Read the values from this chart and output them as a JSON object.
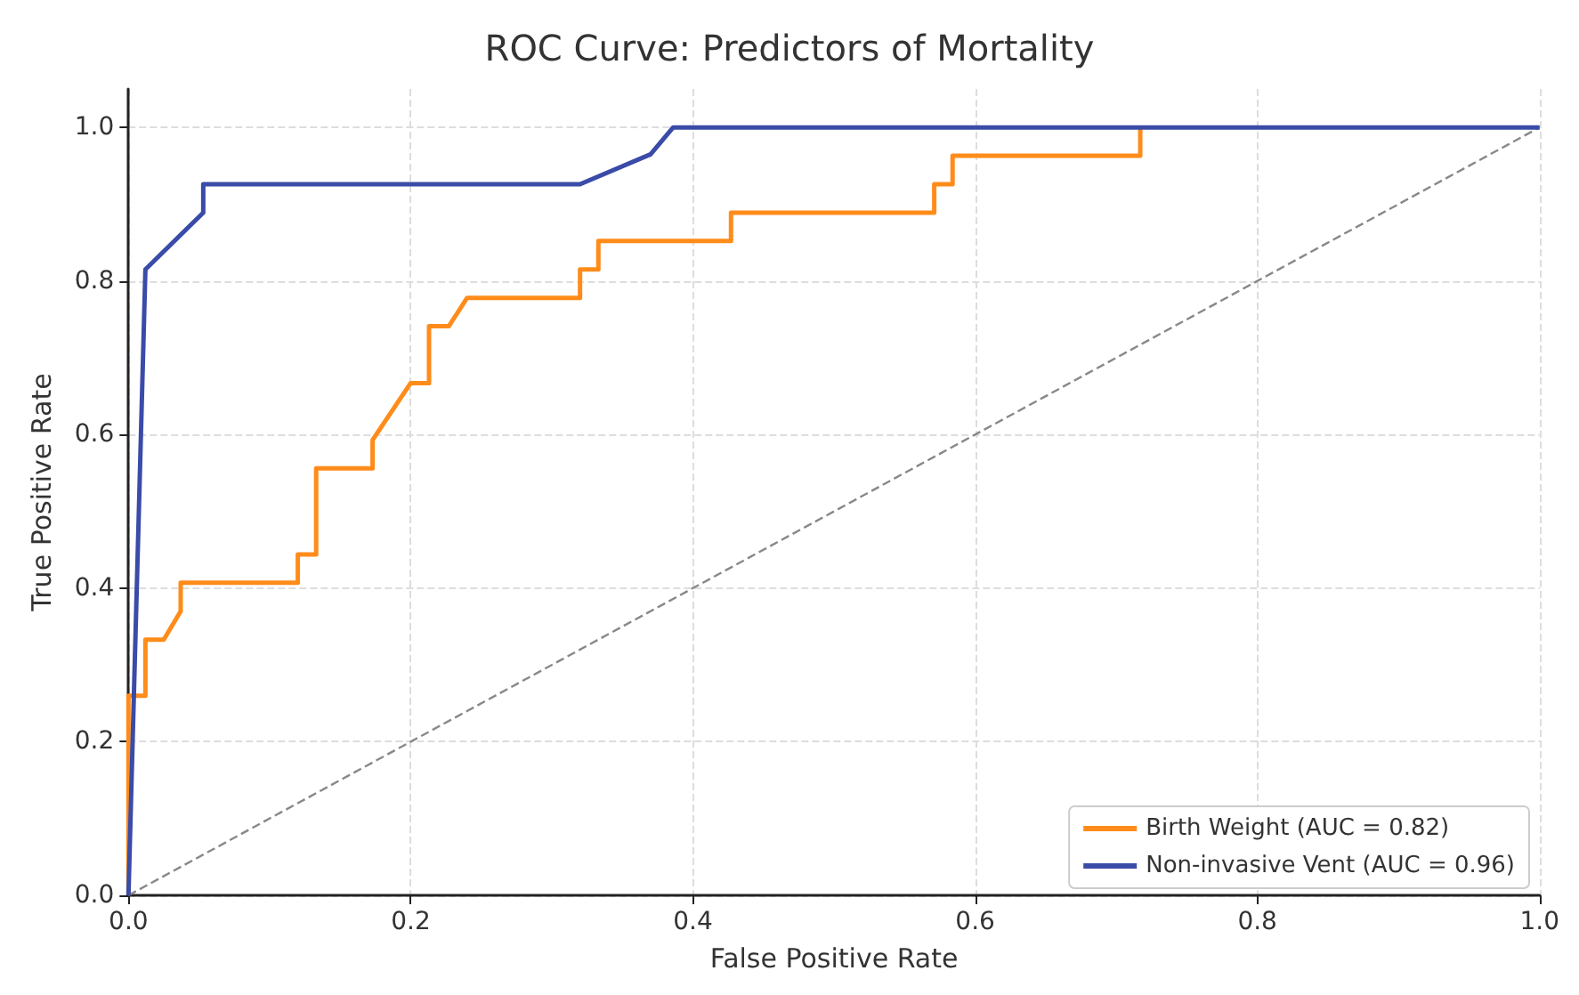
{
  "chart_data": {
    "type": "line",
    "title": "ROC Curve: Predictors of Mortality",
    "xlabel": "False Positive Rate",
    "ylabel": "True Positive Rate",
    "xlim": [
      0,
      1
    ],
    "ylim": [
      0,
      1.05
    ],
    "xticks": [
      {
        "value": 0,
        "label": "0.0"
      },
      {
        "value": 0.2,
        "label": "0.2"
      },
      {
        "value": 0.4,
        "label": "0.4"
      },
      {
        "value": 0.6,
        "label": "0.6"
      },
      {
        "value": 0.8,
        "label": "0.8"
      },
      {
        "value": 1,
        "label": "1.0"
      }
    ],
    "yticks": [
      {
        "value": 0,
        "label": "0.0"
      },
      {
        "value": 0.2,
        "label": "0.2"
      },
      {
        "value": 0.4,
        "label": "0.4"
      },
      {
        "value": 0.6,
        "label": "0.6"
      },
      {
        "value": 0.8,
        "label": "0.8"
      },
      {
        "value": 1,
        "label": "1.0"
      }
    ],
    "grid": true,
    "legend": "bottom right",
    "marker": "none",
    "series": [
      {
        "name": "Birth Weight (AUC = 0.82)",
        "color": "#ff8c1a",
        "line_style": "solid",
        "x": [
          0,
          0,
          0.012,
          0.012,
          0.025,
          0.037,
          0.037,
          0.12,
          0.12,
          0.133,
          0.133,
          0.173,
          0.173,
          0.2,
          0.213,
          0.213,
          0.227,
          0.24,
          0.32,
          0.32,
          0.333,
          0.333,
          0.427,
          0.427,
          0.571,
          0.571,
          0.584,
          0.584,
          0.717,
          0.717
        ],
        "values": [
          0,
          0.26,
          0.26,
          0.333,
          0.333,
          0.37,
          0.407,
          0.407,
          0.444,
          0.444,
          0.556,
          0.556,
          0.593,
          0.667,
          0.667,
          0.741,
          0.741,
          0.778,
          0.778,
          0.815,
          0.815,
          0.852,
          0.852,
          0.889,
          0.889,
          0.926,
          0.926,
          0.963,
          0.963,
          1
        ]
      },
      {
        "name": "Non-invasive Vent (AUC = 0.96)",
        "color": "#3a4ba8",
        "line_style": "solid",
        "x": [
          0,
          0.012,
          0.053,
          0.053,
          0.32,
          0.37,
          0.386,
          1
        ],
        "values": [
          0,
          0.815,
          0.889,
          0.926,
          0.926,
          0.965,
          1,
          1
        ]
      },
      {
        "color": "#888888",
        "line_style": "dashed",
        "x": [
          0,
          1
        ],
        "values": [
          0,
          1
        ]
      }
    ]
  }
}
